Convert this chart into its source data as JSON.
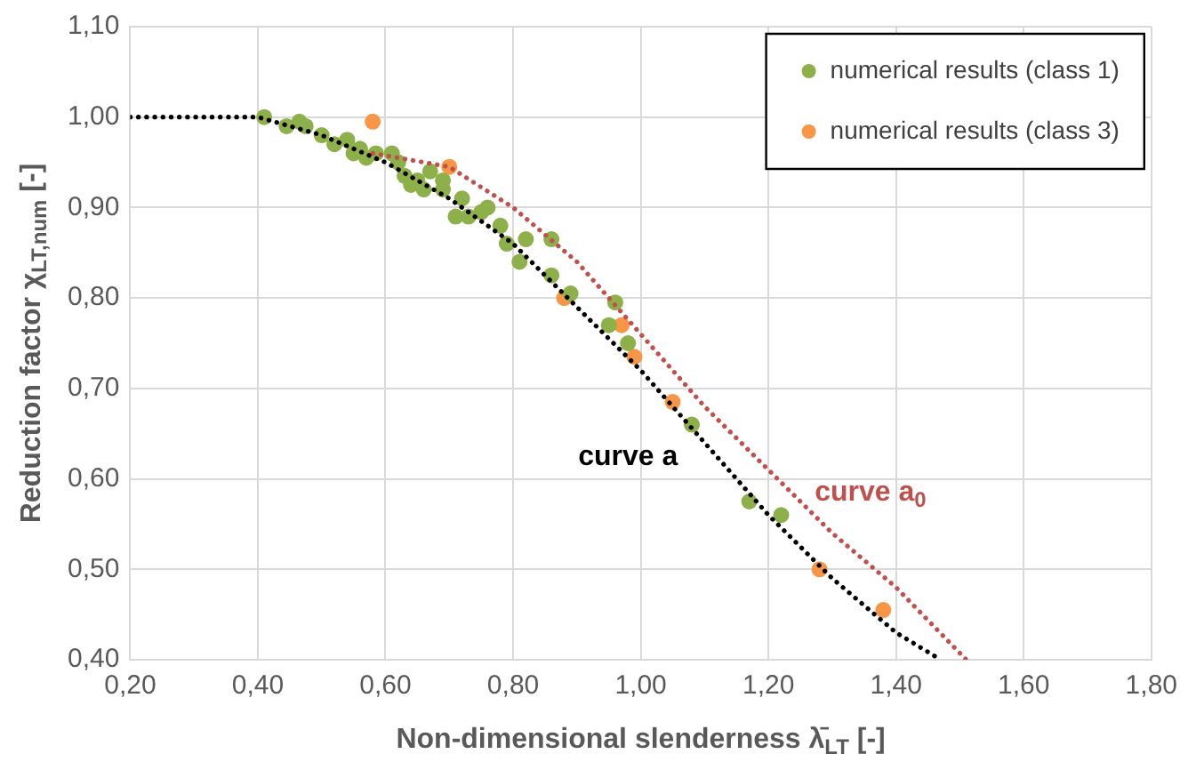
{
  "chart_data": {
    "type": "scatter",
    "xlabel": "Non-dimensional slenderness λ̄$_{LT}$ [-]",
    "ylabel": "Reduction factor χ$_{LT,num}$ [-]",
    "xlim": [
      0.2,
      1.8
    ],
    "ylim": [
      0.4,
      1.1
    ],
    "xticks": [
      {
        "value": 0.2,
        "label": "0,20"
      },
      {
        "value": 0.4,
        "label": "0,40"
      },
      {
        "value": 0.6,
        "label": "0,60"
      },
      {
        "value": 0.8,
        "label": "0,80"
      },
      {
        "value": 1.0,
        "label": "1,00"
      },
      {
        "value": 1.2,
        "label": "1,20"
      },
      {
        "value": 1.4,
        "label": "1,40"
      },
      {
        "value": 1.6,
        "label": "1,60"
      },
      {
        "value": 1.8,
        "label": "1,80"
      }
    ],
    "yticks": [
      {
        "value": 0.4,
        "label": "0,40"
      },
      {
        "value": 0.5,
        "label": "0,50"
      },
      {
        "value": 0.6,
        "label": "0,60"
      },
      {
        "value": 0.7,
        "label": "0,70"
      },
      {
        "value": 0.8,
        "label": "0,80"
      },
      {
        "value": 0.9,
        "label": "0,90"
      },
      {
        "value": 1.0,
        "label": "1,00"
      },
      {
        "value": 1.1,
        "label": "1,10"
      }
    ],
    "grid": true,
    "legend": "top right",
    "marker": "circle",
    "annotations": [
      "curve a",
      "curve a$_{0}$"
    ],
    "series": [
      {
        "type": "line",
        "color": "#000000",
        "line_style": "dotted",
        "marker": "none",
        "x": [
          0.2,
          0.4,
          0.5,
          0.6,
          0.7,
          0.8,
          0.9,
          1.0,
          1.1,
          1.2,
          1.3,
          1.4,
          1.47
        ],
        "values": [
          1.0,
          1.0,
          0.98,
          0.95,
          0.91,
          0.86,
          0.79,
          0.72,
          0.64,
          0.56,
          0.49,
          0.43,
          0.4
        ]
      },
      {
        "type": "line",
        "color": "#c0504d",
        "line_style": "dotted",
        "marker": "none",
        "x": [
          0.58,
          0.7,
          0.8,
          0.9,
          1.0,
          1.1,
          1.2,
          1.3,
          1.4,
          1.51
        ],
        "values": [
          0.96,
          0.945,
          0.9,
          0.84,
          0.76,
          0.68,
          0.61,
          0.54,
          0.48,
          0.4
        ]
      },
      {
        "name": "numerical results (class 1)",
        "color": "#8db04a",
        "x": [
          0.41,
          0.445,
          0.465,
          0.475,
          0.5,
          0.52,
          0.54,
          0.55,
          0.56,
          0.57,
          0.585,
          0.61,
          0.62,
          0.63,
          0.64,
          0.65,
          0.66,
          0.67,
          0.69,
          0.69,
          0.71,
          0.72,
          0.73,
          0.75,
          0.76,
          0.78,
          0.79,
          0.81,
          0.82,
          0.86,
          0.86,
          0.89,
          0.96,
          0.95,
          0.98,
          1.08,
          1.17,
          1.22
        ],
        "values": [
          1.0,
          0.99,
          0.995,
          0.99,
          0.98,
          0.97,
          0.975,
          0.96,
          0.965,
          0.955,
          0.96,
          0.96,
          0.95,
          0.935,
          0.925,
          0.93,
          0.92,
          0.94,
          0.92,
          0.93,
          0.89,
          0.91,
          0.89,
          0.895,
          0.9,
          0.88,
          0.86,
          0.84,
          0.865,
          0.865,
          0.825,
          0.805,
          0.795,
          0.77,
          0.75,
          0.66,
          0.575,
          0.56
        ]
      },
      {
        "name": "numerical results (class 3)",
        "color": "#f79646",
        "x": [
          0.58,
          0.7,
          0.88,
          0.97,
          0.99,
          1.05,
          1.28,
          1.38
        ],
        "values": [
          0.995,
          0.945,
          0.8,
          0.77,
          0.735,
          0.685,
          0.5,
          0.455
        ]
      }
    ]
  }
}
